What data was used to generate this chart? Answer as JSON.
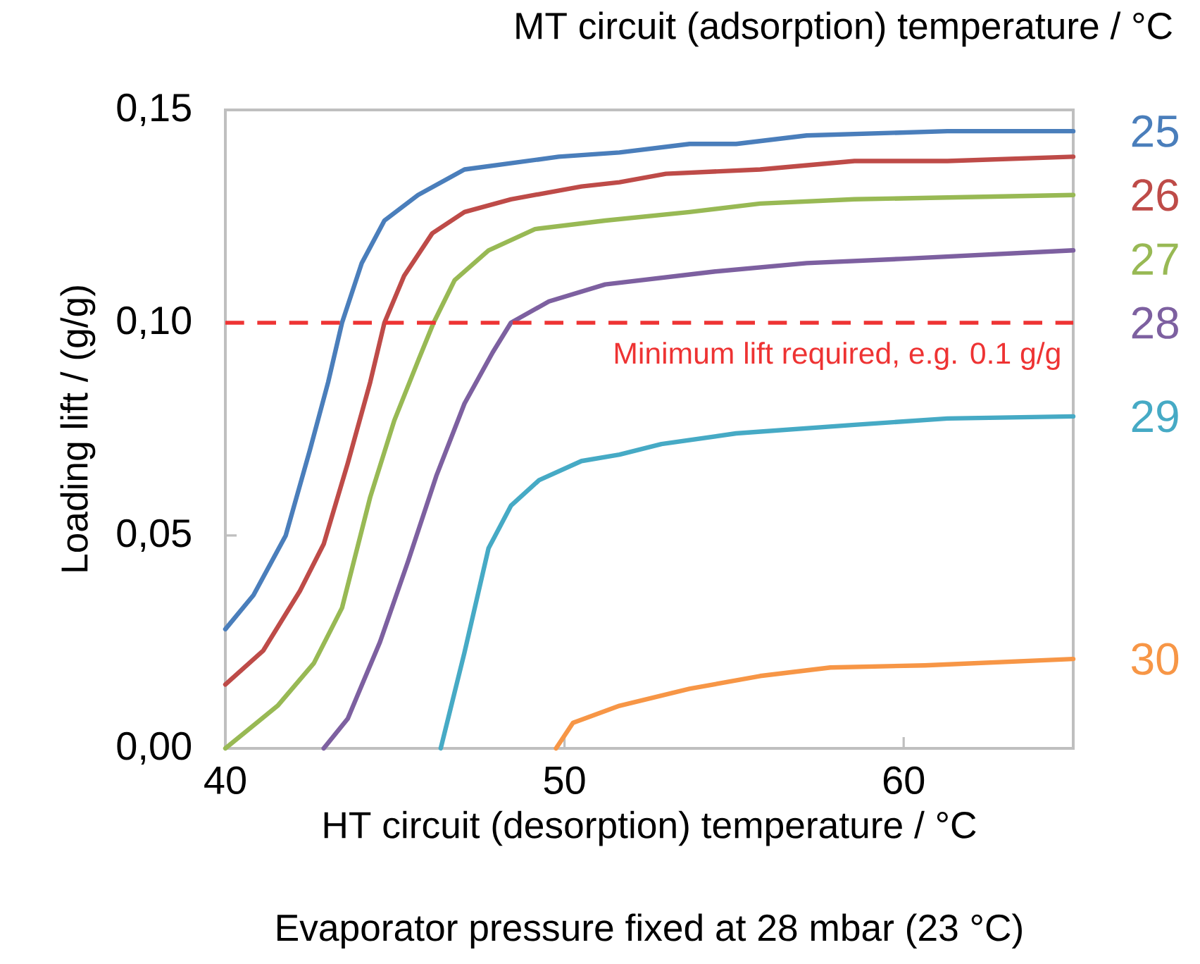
{
  "chart_data": {
    "type": "line",
    "legend_title": "MT circuit (adsorption) temperature / °C",
    "xlabel": "HT circuit (desorption) temperature / °C",
    "ylabel": "Loading lift / (g/g)",
    "annotations": [
      "Evaporator pressure fixed at 28 mbar (23 °C)"
    ],
    "xlim": [
      40,
      65
    ],
    "ylim": [
      0,
      0.15
    ],
    "xticks": [
      40,
      50,
      60
    ],
    "yticks": [
      {
        "value": 0,
        "label": "0,00"
      },
      {
        "value": 0.05,
        "label": "0,05"
      },
      {
        "value": 0.1,
        "label": "0,10"
      },
      {
        "value": 0.15,
        "label": "0,15"
      }
    ],
    "ref_lines": [
      {
        "axis": "y",
        "value": 0.1,
        "label": "Minimum lift required, e.g. 0.1 g/g",
        "color": "#ee3333",
        "line_style": "dashed"
      }
    ],
    "series": [
      {
        "name": "25",
        "color": "#4a7ebb",
        "x": [
          40,
          40.83,
          41.78,
          42.49,
          43.03,
          43.44,
          44.02,
          44.69,
          45.68,
          47.05,
          49.83,
          51.62,
          53.69,
          55.06,
          57.14,
          61.29,
          65
        ],
        "values": [
          0.028,
          0.036,
          0.05,
          0.07,
          0.086,
          0.1,
          0.114,
          0.124,
          0.13,
          0.136,
          0.139,
          0.14,
          0.142,
          0.142,
          0.144,
          0.145,
          0.145
        ]
      },
      {
        "name": "26",
        "color": "#be4b48",
        "x": [
          40,
          41.12,
          42.2,
          42.9,
          43.61,
          44.27,
          44.69,
          45.27,
          46.1,
          47.05,
          48.42,
          50.5,
          51.62,
          52.99,
          55.77,
          58.55,
          61.29,
          65
        ],
        "values": [
          0.015,
          0.023,
          0.037,
          0.048,
          0.067,
          0.086,
          0.1,
          0.111,
          0.121,
          0.126,
          0.129,
          0.132,
          0.133,
          0.135,
          0.136,
          0.138,
          0.138,
          0.139
        ]
      },
      {
        "name": "27",
        "color": "#98b954",
        "x": [
          40,
          41.54,
          42.61,
          43.44,
          44.27,
          44.98,
          45.68,
          46.14,
          46.76,
          47.76,
          49.13,
          51.2,
          53.69,
          55.77,
          58.55,
          65
        ],
        "values": [
          0,
          0.01,
          0.02,
          0.033,
          0.059,
          0.077,
          0.091,
          0.1,
          0.11,
          0.117,
          0.122,
          0.124,
          0.126,
          0.128,
          0.129,
          0.13
        ]
      },
      {
        "name": "28",
        "color": "#7d60a0",
        "x": [
          42.9,
          43.61,
          44.56,
          45.39,
          46.22,
          47.05,
          47.88,
          48.42,
          49.54,
          51.2,
          54.4,
          57.14,
          59.92,
          65
        ],
        "values": [
          0,
          0.007,
          0.025,
          0.044,
          0.064,
          0.081,
          0.093,
          0.1,
          0.105,
          0.109,
          0.112,
          0.114,
          0.115,
          0.117
        ]
      },
      {
        "name": "29",
        "color": "#46aac5",
        "x": [
          46.35,
          47.05,
          47.76,
          48.42,
          49.25,
          50.5,
          51.62,
          52.86,
          55.06,
          58.55,
          61.29,
          65
        ],
        "values": [
          0,
          0.0225,
          0.047,
          0.057,
          0.063,
          0.0675,
          0.069,
          0.0715,
          0.074,
          0.076,
          0.0775,
          0.078
        ]
      },
      {
        "name": "30",
        "color": "#f79646",
        "x": [
          49.75,
          50.25,
          51.62,
          53.69,
          55.77,
          57.84,
          60.62,
          65
        ],
        "values": [
          0,
          0.006,
          0.01,
          0.014,
          0.017,
          0.019,
          0.0195,
          0.021
        ]
      }
    ]
  }
}
